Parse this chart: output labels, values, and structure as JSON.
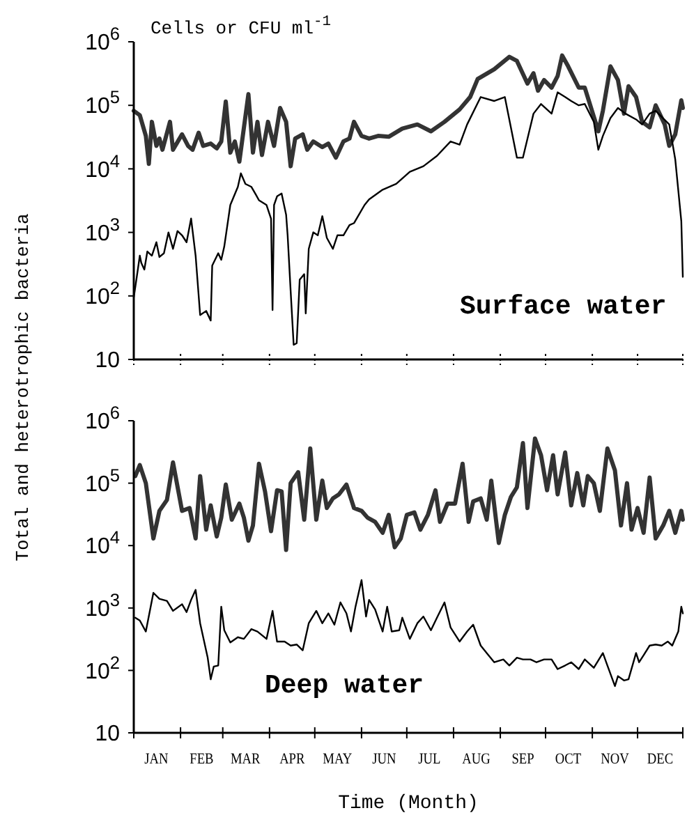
{
  "chart_data": [
    {
      "type": "line",
      "ylabel": "Total and heterotrophic bacteria",
      "annotations": [
        "Cells or CFU ml$^{-1}$",
        "Surface water"
      ],
      "log": "y",
      "xlim": [
        "--01-01",
        "--12-31"
      ],
      "xticks": [
        {
          "value": "--01-01",
          "label": null
        },
        {
          "value": "--02-01",
          "label": null
        },
        {
          "value": "--03-01",
          "label": null
        },
        {
          "value": "--04-01",
          "label": null
        },
        {
          "value": "--05-01",
          "label": null
        },
        {
          "value": "--06-01",
          "label": null
        },
        {
          "value": "--07-01",
          "label": null
        },
        {
          "value": "--08-01",
          "label": null
        },
        {
          "value": "--09-01",
          "label": null
        },
        {
          "value": "--10-01",
          "label": null
        },
        {
          "value": "--11-01",
          "label": null
        },
        {
          "value": "--12-01",
          "label": null
        },
        {
          "value": "--12-31",
          "label": null
        }
      ],
      "ylim": [
        10,
        1000000
      ],
      "yticks": [
        10,
        {
          "value": 100,
          "label": "10$^{2}$"
        },
        {
          "value": 1000,
          "label": "10$^{3}$"
        },
        {
          "value": 10000,
          "label": "10$^{4}$"
        },
        {
          "value": 100000,
          "label": "10$^{5}$"
        },
        {
          "value": 1000000,
          "label": "10$^{6}$"
        }
      ],
      "tick_labels": "y",
      "series": [
        {
          "color": "#333333",
          "x": [
            "--01-01",
            "--01-05",
            "--01-09",
            "--01-11",
            "--01-13",
            "--01-16",
            "--01-18",
            "--01-20",
            "--01-25",
            "--01-27",
            "--02-02",
            "--02-06",
            "--02-09",
            "--02-13",
            "--02-16",
            "--02-21",
            "--02-25",
            "--02-28",
            "--03-03",
            "--03-06",
            "--03-09",
            "--03-12",
            "--03-18",
            "--03-21",
            "--03-24",
            "--03-27",
            "--03-31",
            "--04-04",
            "--04-08",
            "--04-12",
            "--04-15",
            "--04-18",
            "--04-23",
            "--04-26",
            "--04-30",
            "--05-06",
            "--05-10",
            "--05-15",
            "--05-20",
            "--05-24",
            "--05-27",
            "--06-01",
            "--06-06",
            "--06-12",
            "--06-19",
            "--06-28",
            "--07-08",
            "--07-17",
            "--07-26",
            "--08-05",
            "--08-12",
            "--08-17",
            "--08-28",
            "--09-07",
            "--09-12",
            "--09-19",
            "--09-23",
            "--09-26",
            "--09-30",
            "--10-05",
            "--10-09",
            "--10-12",
            "--10-16",
            "--10-23",
            "--10-27",
            "--11-05",
            "--11-08",
            "--11-13",
            "--11-18",
            "--11-22",
            "--11-25",
            "--11-30",
            "--12-04",
            "--12-09",
            "--12-13",
            "--12-19",
            "--12-22",
            "--12-26",
            "--12-30",
            "--12-31"
          ],
          "values": [
            82000,
            70000,
            33000,
            12000,
            55000,
            23000,
            30000,
            20000,
            55000,
            20000,
            35000,
            23000,
            20000,
            37000,
            23000,
            25000,
            21000,
            27000,
            115000,
            18000,
            27000,
            13000,
            150000,
            18000,
            55000,
            16500,
            55000,
            23000,
            91000,
            55000,
            11000,
            30000,
            35000,
            20000,
            27000,
            22000,
            25000,
            15000,
            27000,
            30000,
            55000,
            33000,
            30000,
            33000,
            32000,
            43000,
            50000,
            39000,
            55000,
            86000,
            135000,
            260000,
            370000,
            580000,
            500000,
            220000,
            320000,
            170000,
            250000,
            190000,
            290000,
            610000,
            410000,
            190000,
            190000,
            39000,
            82000,
            410000,
            250000,
            74000,
            200000,
            135000,
            55000,
            45000,
            100000,
            50000,
            23000,
            35000,
            120000,
            91000
          ]
        },
        {
          "color": "#000000",
          "x": [
            "--01-01",
            "--01-03",
            "--01-05",
            "--01-06",
            "--01-08",
            "--01-10",
            "--01-13",
            "--01-16",
            "--01-18",
            "--01-21",
            "--01-24",
            "--01-27",
            "--01-30",
            "--02-02",
            "--02-05",
            "--02-08",
            "--02-11",
            "--02-14",
            "--02-18",
            "--02-21",
            "--02-22",
            "--02-26",
            "--02-28",
            "--03-02",
            "--03-06",
            "--03-11",
            "--03-13",
            "--03-16",
            "--03-20",
            "--03-23",
            "--03-25",
            "--03-30",
            "--04-02",
            "--04-03",
            "--04-04",
            "--04-06",
            "--04-09",
            "--04-12",
            "--04-13",
            "--04-15",
            "--04-17",
            "--04-19",
            "--04-21",
            "--04-24",
            "--04-25",
            "--04-27",
            "--04-30",
            "--05-03",
            "--05-06",
            "--05-09",
            "--05-13",
            "--05-16",
            "--05-20",
            "--05-24",
            "--05-27",
            "--06-03",
            "--06-06",
            "--06-15",
            "--06-24",
            "--07-03",
            "--07-12",
            "--07-21",
            "--07-30",
            "--08-05",
            "--08-10",
            "--08-19",
            "--08-28",
            "--09-04",
            "--09-12",
            "--09-16",
            "--09-23",
            "--09-28",
            "--10-05",
            "--10-09",
            "--10-14",
            "--10-18",
            "--10-23",
            "--10-27",
            "--11-02",
            "--11-05",
            "--11-08",
            "--11-13",
            "--11-18",
            "--11-23",
            "--11-30",
            "--12-04",
            "--12-09",
            "--12-13",
            "--12-22",
            "--12-26",
            "--12-30",
            "--12-31"
          ],
          "values": [
            95,
            200,
            430,
            330,
            260,
            500,
            430,
            700,
            410,
            470,
            1000,
            550,
            1050,
            900,
            700,
            1650,
            430,
            50,
            58,
            41,
            300,
            470,
            370,
            600,
            2700,
            5200,
            8500,
            5800,
            5200,
            3900,
            3200,
            2700,
            1650,
            60,
            2700,
            3700,
            4100,
            1900,
            900,
            120,
            17,
            18,
            180,
            220,
            53,
            550,
            1000,
            900,
            1800,
            820,
            550,
            900,
            900,
            1300,
            1400,
            2700,
            3300,
            4700,
            5800,
            9000,
            11000,
            16000,
            27000,
            24000,
            50000,
            135000,
            117000,
            135000,
            15000,
            15000,
            74000,
            105000,
            74000,
            160000,
            135000,
            117000,
            100000,
            105000,
            55000,
            20000,
            33000,
            63000,
            91000,
            74000,
            60000,
            50000,
            74000,
            82000,
            50000,
            14000,
            1500,
            200
          ]
        }
      ]
    },
    {
      "type": "line",
      "xlabel": "Time (Month)",
      "annotations": [
        "Deep water"
      ],
      "log": "y",
      "xlim": [
        "--01-01",
        "--12-31"
      ],
      "xticks": [
        {
          "value": "--01-01",
          "label": null
        },
        {
          "value": "--01-16",
          "label": "JAN"
        },
        {
          "value": "--02-01",
          "label": null
        },
        {
          "value": "--02-15",
          "label": "FEB"
        },
        {
          "value": "--03-01",
          "label": null
        },
        {
          "value": "--03-16",
          "label": "MAR"
        },
        {
          "value": "--04-01",
          "label": null
        },
        {
          "value": "--04-16",
          "label": "APR"
        },
        {
          "value": "--05-01",
          "label": null
        },
        {
          "value": "--05-16",
          "label": "MAY"
        },
        {
          "value": "--06-01",
          "label": null
        },
        {
          "value": "--06-16",
          "label": "JUN"
        },
        {
          "value": "--07-01",
          "label": null
        },
        {
          "value": "--07-16",
          "label": "JUL"
        },
        {
          "value": "--08-01",
          "label": null
        },
        {
          "value": "--08-16",
          "label": "AUG"
        },
        {
          "value": "--09-01",
          "label": null
        },
        {
          "value": "--09-16",
          "label": "SEP"
        },
        {
          "value": "--10-01",
          "label": null
        },
        {
          "value": "--10-16",
          "label": "OCT"
        },
        {
          "value": "--11-01",
          "label": null
        },
        {
          "value": "--11-16",
          "label": "NOV"
        },
        {
          "value": "--12-01",
          "label": null
        },
        {
          "value": "--12-16",
          "label": "DEC"
        },
        {
          "value": "--12-31",
          "label": null
        }
      ],
      "ylim": [
        10,
        1000000
      ],
      "yticks": [
        10,
        {
          "value": 100,
          "label": "10$^{2}$"
        },
        {
          "value": 1000,
          "label": "10$^{3}$"
        },
        {
          "value": 10000,
          "label": "10$^{4}$"
        },
        {
          "value": 100000,
          "label": "10$^{5}$"
        },
        {
          "value": 1000000,
          "label": "10$^{6}$"
        }
      ],
      "series": [
        {
          "color": "#333333",
          "x": [
            "--01-02",
            "--01-05",
            "--01-09",
            "--01-14",
            "--01-18",
            "--01-23",
            "--01-27",
            "--02-02",
            "--02-07",
            "--02-11",
            "--02-14",
            "--02-18",
            "--02-21",
            "--02-25",
            "--02-28",
            "--03-03",
            "--03-07",
            "--03-12",
            "--03-15",
            "--03-18",
            "--03-21",
            "--03-25",
            "--03-29",
            "--04-02",
            "--04-06",
            "--04-09",
            "--04-12",
            "--04-15",
            "--04-20",
            "--04-24",
            "--04-28",
            "--05-02",
            "--05-06",
            "--05-09",
            "--05-13",
            "--05-17",
            "--05-22",
            "--05-27",
            "--06-01",
            "--06-05",
            "--06-10",
            "--06-15",
            "--06-19",
            "--06-23",
            "--06-27",
            "--07-01",
            "--07-06",
            "--07-10",
            "--07-15",
            "--07-20",
            "--07-23",
            "--07-28",
            "--08-02",
            "--08-07",
            "--08-11",
            "--08-14",
            "--08-19",
            "--08-23",
            "--08-26",
            "--08-31",
            "--09-04",
            "--09-08",
            "--09-12",
            "--09-16",
            "--09-19",
            "--09-24",
            "--09-28",
            "--10-02",
            "--10-06",
            "--10-09",
            "--10-14",
            "--10-18",
            "--10-22",
            "--10-26",
            "--10-29",
            "--11-02",
            "--11-06",
            "--11-11",
            "--11-16",
            "--11-20",
            "--11-24",
            "--11-27",
            "--12-01",
            "--12-05",
            "--12-09",
            "--12-13",
            "--12-18",
            "--12-22",
            "--12-26",
            "--12-30",
            "--12-31"
          ],
          "values": [
            130000,
            195000,
            100000,
            13000,
            36000,
            54000,
            215000,
            36000,
            40000,
            13000,
            130000,
            18000,
            44000,
            14000,
            28000,
            95000,
            26000,
            47000,
            28000,
            12000,
            21000,
            205000,
            74000,
            17000,
            77000,
            74000,
            8500,
            100000,
            150000,
            26000,
            360000,
            26000,
            110000,
            40000,
            57000,
            66000,
            95000,
            40000,
            36000,
            28000,
            24000,
            16000,
            31000,
            9400,
            13000,
            31000,
            34000,
            18000,
            31000,
            77000,
            24000,
            47000,
            47000,
            205000,
            24000,
            51000,
            57000,
            26000,
            110000,
            11000,
            31000,
            60000,
            86000,
            440000,
            40000,
            520000,
            280000,
            77000,
            280000,
            66000,
            310000,
            44000,
            145000,
            44000,
            130000,
            100000,
            36000,
            360000,
            160000,
            21000,
            100000,
            18000,
            40000,
            16000,
            123000,
            13000,
            21000,
            36000,
            16000,
            36000,
            26000
          ]
        },
        {
          "color": "#000000",
          "x": [
            "--01-02",
            "--01-05",
            "--01-09",
            "--01-14",
            "--01-18",
            "--01-23",
            "--01-27",
            "--02-02",
            "--02-05",
            "--02-08",
            "--02-11",
            "--02-14",
            "--02-19",
            "--02-21",
            "--02-23",
            "--02-26",
            "--02-28",
            "--03-02",
            "--03-06",
            "--03-11",
            "--03-15",
            "--03-20",
            "--03-24",
            "--03-30",
            "--04-03",
            "--04-06",
            "--04-11",
            "--04-15",
            "--04-19",
            "--04-23",
            "--04-27",
            "--05-02",
            "--05-06",
            "--05-10",
            "--05-14",
            "--05-18",
            "--05-22",
            "--05-25",
            "--05-28",
            "--06-01",
            "--06-04",
            "--06-06",
            "--06-10",
            "--06-15",
            "--06-18",
            "--06-21",
            "--06-26",
            "--06-28",
            "--07-03",
            "--07-08",
            "--07-12",
            "--07-17",
            "--07-21",
            "--07-26",
            "--07-30",
            "--08-05",
            "--08-10",
            "--08-14",
            "--08-19",
            "--08-23",
            "--08-28",
            "--09-03",
            "--09-07",
            "--09-12",
            "--09-16",
            "--09-21",
            "--09-25",
            "--09-30",
            "--10-05",
            "--10-09",
            "--10-14",
            "--10-18",
            "--10-23",
            "--10-27",
            "--11-02",
            "--11-08",
            "--11-11",
            "--11-16",
            "--11-18",
            "--11-22",
            "--11-25",
            "--11-30",
            "--12-02",
            "--12-05",
            "--12-09",
            "--12-13",
            "--12-17",
            "--12-21",
            "--12-24",
            "--12-28",
            "--12-30",
            "--12-31"
          ],
          "values": [
            700,
            630,
            420,
            1750,
            1400,
            1300,
            900,
            1150,
            860,
            1350,
            1950,
            570,
            160,
            72,
            115,
            120,
            1050,
            440,
            280,
            340,
            320,
            460,
            420,
            320,
            900,
            290,
            290,
            250,
            260,
            210,
            570,
            900,
            570,
            820,
            540,
            1230,
            820,
            420,
            1050,
            2800,
            730,
            1350,
            950,
            420,
            1050,
            420,
            440,
            700,
            320,
            570,
            730,
            440,
            700,
            1230,
            490,
            290,
            420,
            540,
            250,
            190,
            135,
            150,
            120,
            160,
            150,
            150,
            135,
            150,
            150,
            105,
            120,
            135,
            105,
            150,
            110,
            190,
            120,
            56,
            81,
            69,
            72,
            190,
            135,
            175,
            250,
            260,
            250,
            290,
            250,
            420,
            1050,
            820
          ]
        }
      ]
    }
  ]
}
